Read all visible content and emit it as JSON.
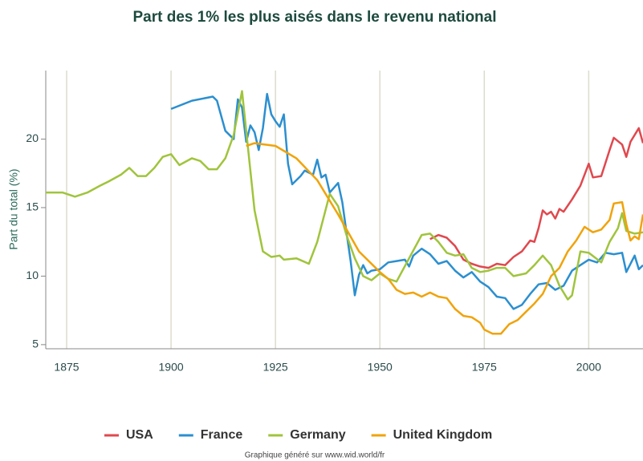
{
  "chart_data": {
    "type": "line",
    "title": "Part des 1% les plus aisés dans le revenu national",
    "y_label": "Part du total (%)",
    "credit": "Graphique généré sur www.wid.world/fr",
    "xlim": [
      1870,
      2013
    ],
    "xticks": [
      1875,
      1900,
      1925,
      1950,
      1975,
      2000
    ],
    "ylim": [
      4.7,
      25
    ],
    "yticks": [
      5,
      10,
      15,
      20
    ],
    "grid": "x",
    "series": [
      {
        "name": "USA",
        "color": "#e0484e",
        "x": [
          1962,
          1964,
          1966,
          1968,
          1970,
          1972,
          1974,
          1976,
          1978,
          1980,
          1982,
          1984,
          1986,
          1987,
          1988,
          1989,
          1990,
          1991,
          1992,
          1993,
          1994,
          1996,
          1998,
          2000,
          2001,
          2003,
          2005,
          2006,
          2008,
          2009,
          2010,
          2012,
          2013
        ],
        "values": [
          12.7,
          13.0,
          12.8,
          12.2,
          11.2,
          10.9,
          10.7,
          10.6,
          10.9,
          10.8,
          11.4,
          11.8,
          12.6,
          12.5,
          13.5,
          14.8,
          14.5,
          14.7,
          14.2,
          14.9,
          14.7,
          15.6,
          16.6,
          18.2,
          17.2,
          17.3,
          19.2,
          20.1,
          19.6,
          18.7,
          19.8,
          20.8,
          19.7
        ]
      },
      {
        "name": "France",
        "color": "#2b8fd0",
        "x": [
          1900,
          1905,
          1910,
          1911,
          1913,
          1915,
          1916,
          1917,
          1918,
          1919,
          1920,
          1921,
          1922,
          1923,
          1924,
          1925,
          1926,
          1927,
          1928,
          1929,
          1931,
          1932,
          1934,
          1935,
          1936,
          1937,
          1938,
          1940,
          1941,
          1942,
          1943,
          1944,
          1945,
          1946,
          1947,
          1948,
          1950,
          1952,
          1954,
          1956,
          1957,
          1958,
          1960,
          1962,
          1964,
          1966,
          1968,
          1970,
          1972,
          1974,
          1976,
          1978,
          1980,
          1982,
          1984,
          1986,
          1988,
          1990,
          1992,
          1994,
          1996,
          1998,
          2000,
          2002,
          2004,
          2006,
          2008,
          2009,
          2011,
          2012,
          2013
        ],
        "values": [
          22.2,
          22.8,
          23.1,
          22.8,
          20.6,
          20.0,
          22.9,
          22.3,
          19.8,
          21.0,
          20.5,
          19.2,
          20.8,
          23.3,
          21.8,
          21.3,
          20.9,
          21.8,
          18.2,
          16.7,
          17.3,
          17.7,
          17.4,
          18.5,
          17.2,
          17.4,
          16.1,
          16.8,
          15.4,
          13.2,
          11.1,
          8.6,
          10.1,
          10.8,
          10.2,
          10.4,
          10.5,
          11.0,
          11.1,
          11.2,
          10.7,
          11.5,
          12.0,
          11.6,
          10.9,
          11.1,
          10.4,
          9.9,
          10.3,
          9.6,
          9.2,
          8.5,
          8.4,
          7.6,
          7.9,
          8.7,
          9.4,
          9.5,
          9.0,
          9.3,
          10.4,
          10.8,
          11.2,
          11.0,
          11.7,
          11.6,
          11.7,
          10.3,
          11.5,
          10.5,
          10.8
        ]
      },
      {
        "name": "Germany",
        "color": "#a0c43c",
        "x": [
          1870,
          1874,
          1877,
          1880,
          1883,
          1885,
          1888,
          1890,
          1892,
          1894,
          1896,
          1898,
          1900,
          1902,
          1905,
          1907,
          1909,
          1911,
          1913,
          1915,
          1917,
          1918,
          1920,
          1922,
          1924,
          1926,
          1927,
          1930,
          1933,
          1935,
          1938,
          1940,
          1942,
          1944,
          1946,
          1948,
          1950,
          1952,
          1954,
          1957,
          1960,
          1962,
          1964,
          1966,
          1968,
          1970,
          1972,
          1974,
          1976,
          1978,
          1980,
          1982,
          1985,
          1987,
          1989,
          1991,
          1993,
          1995,
          1996,
          1998,
          2000,
          2003,
          2005,
          2007,
          2008,
          2009,
          2011,
          2013
        ],
        "values": [
          16.1,
          16.1,
          15.8,
          16.1,
          16.6,
          16.9,
          17.4,
          17.9,
          17.3,
          17.3,
          17.9,
          18.7,
          18.9,
          18.1,
          18.6,
          18.4,
          17.8,
          17.8,
          18.6,
          20.3,
          23.5,
          20.6,
          14.8,
          11.8,
          11.4,
          11.5,
          11.2,
          11.3,
          10.9,
          12.5,
          16.0,
          15.1,
          13.0,
          11.3,
          10.0,
          9.7,
          10.2,
          9.8,
          9.6,
          11.3,
          13.0,
          13.1,
          12.5,
          11.7,
          11.5,
          11.6,
          10.6,
          10.3,
          10.4,
          10.6,
          10.6,
          10.0,
          10.2,
          10.8,
          11.5,
          10.8,
          9.3,
          8.3,
          8.6,
          11.8,
          11.7,
          11.0,
          12.5,
          13.5,
          14.6,
          13.3,
          13.1,
          13.2
        ]
      },
      {
        "name": "United Kingdom",
        "color": "#f0a30a",
        "x": [
          1918,
          1920,
          1925,
          1930,
          1935,
          1940,
          1945,
          1950,
          1952,
          1954,
          1956,
          1958,
          1960,
          1962,
          1964,
          1966,
          1968,
          1970,
          1972,
          1974,
          1975,
          1977,
          1979,
          1981,
          1983,
          1985,
          1987,
          1989,
          1991,
          1993,
          1995,
          1997,
          1999,
          2001,
          2003,
          2005,
          2006,
          2008,
          2009,
          2010,
          2011,
          2012,
          2013
        ],
        "values": [
          19.5,
          19.7,
          19.5,
          18.6,
          17.0,
          14.5,
          11.8,
          10.3,
          9.8,
          9.0,
          8.7,
          8.8,
          8.5,
          8.8,
          8.5,
          8.4,
          7.6,
          7.1,
          7.0,
          6.6,
          6.1,
          5.8,
          5.8,
          6.5,
          6.8,
          7.4,
          8.0,
          8.7,
          10.0,
          10.6,
          11.8,
          12.6,
          13.6,
          13.2,
          13.4,
          14.1,
          15.3,
          15.4,
          13.8,
          12.6,
          12.9,
          12.7,
          14.5
        ]
      }
    ]
  }
}
